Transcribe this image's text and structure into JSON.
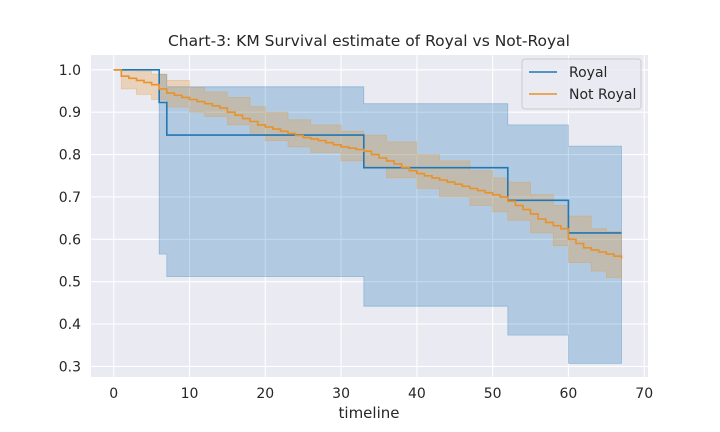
{
  "chart_data": {
    "type": "line",
    "title": "Chart-3: KM Survival estimate of Royal vs Not-Royal",
    "xlabel": "timeline",
    "ylabel": "",
    "xlim": [
      -3,
      70.5
    ],
    "ylim": [
      0.275,
      1.035
    ],
    "xticks": [
      0,
      10,
      20,
      30,
      40,
      50,
      60,
      70
    ],
    "yticks": [
      0.3,
      0.4,
      0.5,
      0.6,
      0.7,
      0.8,
      0.9,
      1.0
    ],
    "grid": true,
    "legend_position": "top-right",
    "series": [
      {
        "name": "Royal",
        "color": "#1f77b4",
        "step": [
          [
            0,
            1.0
          ],
          [
            6,
            0.923
          ],
          [
            7,
            0.846
          ],
          [
            33,
            0.769
          ],
          [
            52,
            0.692
          ],
          [
            60,
            0.615
          ],
          [
            67,
            0.615
          ]
        ],
        "ci_lower": [
          [
            0,
            1.0
          ],
          [
            6,
            0.565
          ],
          [
            7,
            0.512
          ],
          [
            33,
            0.442
          ],
          [
            52,
            0.374
          ],
          [
            60,
            0.307
          ],
          [
            67,
            0.307
          ]
        ],
        "ci_upper": [
          [
            0,
            1.0
          ],
          [
            6,
            0.989
          ],
          [
            7,
            0.96
          ],
          [
            33,
            0.92
          ],
          [
            52,
            0.87
          ],
          [
            60,
            0.82
          ],
          [
            67,
            0.82
          ]
        ]
      },
      {
        "name": "Not Royal",
        "color": "#e8922a",
        "step": [
          [
            0,
            1.0
          ],
          [
            1,
            0.985
          ],
          [
            2,
            0.98
          ],
          [
            3,
            0.975
          ],
          [
            4,
            0.97
          ],
          [
            5,
            0.965
          ],
          [
            6,
            0.955
          ],
          [
            7,
            0.945
          ],
          [
            8,
            0.94
          ],
          [
            9,
            0.935
          ],
          [
            10,
            0.93
          ],
          [
            11,
            0.925
          ],
          [
            12,
            0.92
          ],
          [
            13,
            0.915
          ],
          [
            14,
            0.91
          ],
          [
            15,
            0.9
          ],
          [
            16,
            0.893
          ],
          [
            17,
            0.885
          ],
          [
            18,
            0.878
          ],
          [
            19,
            0.87
          ],
          [
            20,
            0.865
          ],
          [
            21,
            0.86
          ],
          [
            22,
            0.855
          ],
          [
            23,
            0.85
          ],
          [
            24,
            0.845
          ],
          [
            25,
            0.84
          ],
          [
            26,
            0.837
          ],
          [
            27,
            0.833
          ],
          [
            28,
            0.828
          ],
          [
            29,
            0.823
          ],
          [
            30,
            0.818
          ],
          [
            31,
            0.815
          ],
          [
            32,
            0.812
          ],
          [
            33,
            0.808
          ],
          [
            34,
            0.8
          ],
          [
            35,
            0.792
          ],
          [
            36,
            0.785
          ],
          [
            37,
            0.778
          ],
          [
            38,
            0.77
          ],
          [
            39,
            0.762
          ],
          [
            40,
            0.755
          ],
          [
            41,
            0.75
          ],
          [
            42,
            0.745
          ],
          [
            43,
            0.74
          ],
          [
            44,
            0.735
          ],
          [
            45,
            0.73
          ],
          [
            46,
            0.725
          ],
          [
            47,
            0.72
          ],
          [
            48,
            0.715
          ],
          [
            49,
            0.71
          ],
          [
            50,
            0.705
          ],
          [
            51,
            0.7
          ],
          [
            52,
            0.69
          ],
          [
            53,
            0.68
          ],
          [
            54,
            0.67
          ],
          [
            55,
            0.66
          ],
          [
            56,
            0.648
          ],
          [
            57,
            0.64
          ],
          [
            58,
            0.632
          ],
          [
            59,
            0.625
          ],
          [
            60,
            0.6
          ],
          [
            61,
            0.59
          ],
          [
            62,
            0.58
          ],
          [
            63,
            0.575
          ],
          [
            64,
            0.57
          ],
          [
            65,
            0.565
          ],
          [
            66,
            0.56
          ],
          [
            67,
            0.555
          ]
        ],
        "ci_lower": [
          [
            0,
            1.0
          ],
          [
            1,
            0.955
          ],
          [
            3,
            0.942
          ],
          [
            5,
            0.93
          ],
          [
            7,
            0.912
          ],
          [
            10,
            0.9
          ],
          [
            12,
            0.89
          ],
          [
            15,
            0.87
          ],
          [
            18,
            0.846
          ],
          [
            20,
            0.833
          ],
          [
            23,
            0.818
          ],
          [
            26,
            0.805
          ],
          [
            30,
            0.785
          ],
          [
            33,
            0.77
          ],
          [
            36,
            0.745
          ],
          [
            40,
            0.72
          ],
          [
            43,
            0.7
          ],
          [
            47,
            0.68
          ],
          [
            50,
            0.665
          ],
          [
            52,
            0.645
          ],
          [
            55,
            0.615
          ],
          [
            58,
            0.585
          ],
          [
            60,
            0.545
          ],
          [
            63,
            0.525
          ],
          [
            65,
            0.51
          ],
          [
            67,
            0.5
          ]
        ],
        "ci_upper": [
          [
            0,
            1.0
          ],
          [
            1,
            1.0
          ],
          [
            3,
            0.997
          ],
          [
            5,
            0.99
          ],
          [
            7,
            0.975
          ],
          [
            10,
            0.958
          ],
          [
            12,
            0.948
          ],
          [
            15,
            0.935
          ],
          [
            18,
            0.913
          ],
          [
            20,
            0.9
          ],
          [
            23,
            0.882
          ],
          [
            26,
            0.87
          ],
          [
            30,
            0.855
          ],
          [
            33,
            0.846
          ],
          [
            36,
            0.83
          ],
          [
            40,
            0.8
          ],
          [
            43,
            0.785
          ],
          [
            47,
            0.762
          ],
          [
            50,
            0.745
          ],
          [
            52,
            0.735
          ],
          [
            55,
            0.705
          ],
          [
            58,
            0.68
          ],
          [
            60,
            0.655
          ],
          [
            63,
            0.625
          ],
          [
            65,
            0.618
          ],
          [
            67,
            0.61
          ]
        ]
      }
    ]
  }
}
